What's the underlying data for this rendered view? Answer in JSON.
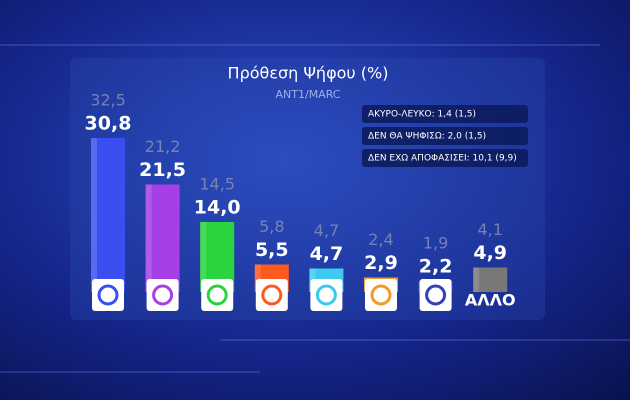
{
  "chart_data": {
    "type": "bar",
    "title": "Πρόθεση Ψήφου (%)",
    "subtitle": "ANT1/MARC",
    "categories": [
      null,
      null,
      null,
      null,
      null,
      null,
      null,
      "ΑΛΛΟ"
    ],
    "values": [
      30.8,
      21.5,
      14.0,
      5.5,
      4.7,
      2.9,
      2.2,
      4.9
    ],
    "value_labels": [
      "30,8",
      "21,5",
      "14,0",
      "5,5",
      "4,7",
      "2,9",
      "2,2",
      "4,9"
    ],
    "previous_values": [
      32.5,
      21.2,
      14.5,
      5.8,
      4.7,
      2.4,
      1.9,
      4.1
    ],
    "previous_value_labels": [
      "32,5",
      "21,2",
      "14,5",
      "5,8",
      "4,7",
      "2,4",
      "1,9",
      "4,1"
    ],
    "colors": [
      "#3b4ff0",
      "#a63fe6",
      "#2bd43f",
      "#ff5a1e",
      "#3ecaf0",
      "#f5982c",
      "#343fb8",
      "#787878"
    ],
    "annotations": [
      "ΑΚΥΡΟ-ΛΕΥΚΟ: 1,4  (1,5)",
      "ΔΕΝ ΘΑ ΨΗΦΙΣΩ: 2,0  (1,5)",
      "ΔΕΝ ΕΧΩ ΑΠΟΦΑΣΙΣΕΙ: 10,1  (9,9)"
    ]
  }
}
